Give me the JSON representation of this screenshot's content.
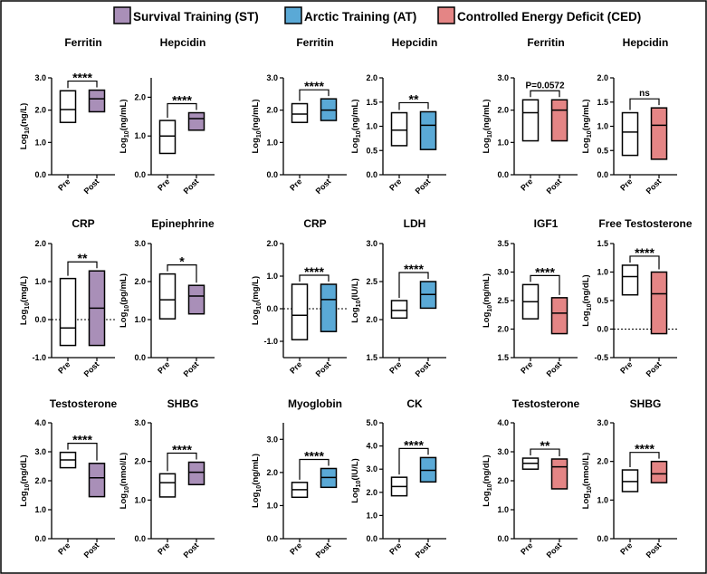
{
  "legend": [
    {
      "label": "Survival Training (ST)",
      "color": "#a98fb8"
    },
    {
      "label": "Arctic Training (AT)",
      "color": "#5aa9d6"
    },
    {
      "label": "Controlled Energy Deficit (CED)",
      "color": "#e48585"
    }
  ],
  "chart_data": [
    {
      "type": "box",
      "title": "Ferritin",
      "group": "ST",
      "ylabel_base": "Log",
      "ylabel_sub": "10",
      "ylabel_unit": "(ng/L)",
      "ylim": [
        0,
        3
      ],
      "yticks": [
        "0.0",
        "1.0",
        "2.0",
        "3.0"
      ],
      "categories": [
        "Pre",
        "Post"
      ],
      "boxes": [
        {
          "min": 1.62,
          "med": 2.02,
          "max": 2.6
        },
        {
          "min": 1.95,
          "med": 2.35,
          "max": 2.62
        }
      ],
      "significance": "****"
    },
    {
      "type": "box",
      "title": "Hepcidin",
      "group": "ST",
      "ylabel_base": "Log",
      "ylabel_sub": "10",
      "ylabel_unit": "(ng/mL)",
      "ylim": [
        0,
        2.5
      ],
      "yticks": [
        "0.0",
        "1.0",
        "2.0"
      ],
      "categories": [
        "Pre",
        "Post"
      ],
      "boxes": [
        {
          "min": 0.55,
          "med": 1.0,
          "max": 1.4
        },
        {
          "min": 1.15,
          "med": 1.45,
          "max": 1.6
        }
      ],
      "significance": "****"
    },
    {
      "type": "box",
      "title": "Ferritin",
      "group": "AT",
      "ylabel_base": "Log",
      "ylabel_sub": "10",
      "ylabel_unit": "(ng/mL)",
      "ylim": [
        0,
        3
      ],
      "yticks": [
        "0.0",
        "1.0",
        "2.0",
        "3.0"
      ],
      "categories": [
        "Pre",
        "Post"
      ],
      "boxes": [
        {
          "min": 1.62,
          "med": 1.88,
          "max": 2.2
        },
        {
          "min": 1.68,
          "med": 2.0,
          "max": 2.35
        }
      ],
      "significance": "****"
    },
    {
      "type": "box",
      "title": "Hepcidin",
      "group": "AT",
      "ylabel_base": "Log",
      "ylabel_sub": "10",
      "ylabel_unit": "(ng/mL)",
      "ylim": [
        0,
        2
      ],
      "yticks": [
        "0.0",
        "0.5",
        "1.0",
        "1.5",
        "2.0"
      ],
      "categories": [
        "Pre",
        "Post"
      ],
      "boxes": [
        {
          "min": 0.6,
          "med": 0.92,
          "max": 1.28
        },
        {
          "min": 0.52,
          "med": 1.02,
          "max": 1.3
        }
      ],
      "significance": "**"
    },
    {
      "type": "box",
      "title": "Ferritin",
      "group": "CED",
      "ylabel_base": "Log",
      "ylabel_sub": "10",
      "ylabel_unit": "(ng/mL)",
      "ylim": [
        0,
        3
      ],
      "yticks": [
        "0.0",
        "1.0",
        "2.0",
        "3.0"
      ],
      "categories": [
        "Pre",
        "Post"
      ],
      "boxes": [
        {
          "min": 1.05,
          "med": 1.92,
          "max": 2.32
        },
        {
          "min": 1.05,
          "med": 2.0,
          "max": 2.32
        }
      ],
      "significance": "P=0.0572"
    },
    {
      "type": "box",
      "title": "Hepcidin",
      "group": "CED",
      "ylabel_base": "Log",
      "ylabel_sub": "10",
      "ylabel_unit": "(ng/mL)",
      "ylim": [
        0,
        2
      ],
      "yticks": [
        "0.0",
        "0.5",
        "1.0",
        "1.5",
        "2.0"
      ],
      "categories": [
        "Pre",
        "Post"
      ],
      "boxes": [
        {
          "min": 0.4,
          "med": 0.88,
          "max": 1.28
        },
        {
          "min": 0.32,
          "med": 1.02,
          "max": 1.38
        }
      ],
      "significance": "ns"
    },
    {
      "type": "box",
      "title": "CRP",
      "group": "ST",
      "ylabel_base": "Log",
      "ylabel_sub": "10",
      "ylabel_unit": "(mg/L)",
      "ylim": [
        -1,
        2
      ],
      "yticks": [
        "-1.0",
        "0.0",
        "1.0",
        "2.0"
      ],
      "dashed_zero": true,
      "categories": [
        "Pre",
        "Post"
      ],
      "boxes": [
        {
          "min": -0.68,
          "med": -0.22,
          "max": 1.08
        },
        {
          "min": -0.68,
          "med": 0.3,
          "max": 1.28
        }
      ],
      "significance": "**"
    },
    {
      "type": "box",
      "title": "Epinephrine",
      "group": "ST",
      "ylabel_base": "Log",
      "ylabel_sub": "10",
      "ylabel_unit": "(pg/mL)",
      "ylim": [
        0,
        3
      ],
      "yticks": [
        "0.0",
        "1.0",
        "2.0",
        "3.0"
      ],
      "categories": [
        "Pre",
        "Post"
      ],
      "boxes": [
        {
          "min": 1.02,
          "med": 1.52,
          "max": 2.2
        },
        {
          "min": 1.15,
          "med": 1.62,
          "max": 1.9
        }
      ],
      "significance": "*"
    },
    {
      "type": "box",
      "title": "CRP",
      "group": "AT",
      "ylabel_base": "Log",
      "ylabel_sub": "10",
      "ylabel_unit": "(mg/L)",
      "ylim": [
        -1.5,
        2
      ],
      "yticks": [
        "-1.0",
        "0.0",
        "1.0",
        "2.0"
      ],
      "dashed_zero": true,
      "categories": [
        "Pre",
        "Post"
      ],
      "boxes": [
        {
          "min": -0.95,
          "med": -0.2,
          "max": 0.75
        },
        {
          "min": -0.7,
          "med": 0.28,
          "max": 0.75
        }
      ],
      "significance": "****"
    },
    {
      "type": "box",
      "title": "LDH",
      "group": "AT",
      "ylabel_base": "Log",
      "ylabel_sub": "10",
      "ylabel_unit": "(IU/L)",
      "ylim": [
        1.5,
        3
      ],
      "yticks": [
        "1.5",
        "2.0",
        "2.5",
        "3.0"
      ],
      "categories": [
        "Pre",
        "Post"
      ],
      "boxes": [
        {
          "min": 2.02,
          "med": 2.12,
          "max": 2.25
        },
        {
          "min": 2.15,
          "med": 2.33,
          "max": 2.5
        }
      ],
      "significance": "****"
    },
    {
      "type": "box",
      "title": "IGF1",
      "group": "CED",
      "ylabel_base": "Log",
      "ylabel_sub": "10",
      "ylabel_unit": "(ng/mL)",
      "ylim": [
        1.5,
        3.5
      ],
      "yticks": [
        "1.5",
        "2.0",
        "2.5",
        "3.0",
        "3.5"
      ],
      "categories": [
        "Pre",
        "Post"
      ],
      "boxes": [
        {
          "min": 2.18,
          "med": 2.48,
          "max": 2.78
        },
        {
          "min": 1.92,
          "med": 2.28,
          "max": 2.55
        }
      ],
      "significance": "****"
    },
    {
      "type": "box",
      "title": "Free Testosterone",
      "group": "CED",
      "ylabel_base": "Log",
      "ylabel_sub": "10",
      "ylabel_unit": "(ng/dL)",
      "ylim": [
        -0.5,
        1.5
      ],
      "yticks": [
        "-0.5",
        "0.0",
        "0.5",
        "1.0",
        "1.5"
      ],
      "dashed_zero": true,
      "categories": [
        "Pre",
        "Post"
      ],
      "boxes": [
        {
          "min": 0.6,
          "med": 0.92,
          "max": 1.12
        },
        {
          "min": -0.08,
          "med": 0.62,
          "max": 1.0
        }
      ],
      "significance": "****"
    },
    {
      "type": "box",
      "title": "Testosterone",
      "group": "ST",
      "ylabel_base": "Log",
      "ylabel_sub": "10",
      "ylabel_unit": "(ng/dL)",
      "ylim": [
        0,
        4
      ],
      "yticks": [
        "0.0",
        "1.0",
        "2.0",
        "3.0",
        "4.0"
      ],
      "categories": [
        "Pre",
        "Post"
      ],
      "boxes": [
        {
          "min": 2.45,
          "med": 2.72,
          "max": 2.98
        },
        {
          "min": 1.45,
          "med": 2.1,
          "max": 2.6
        }
      ],
      "significance": "****"
    },
    {
      "type": "box",
      "title": "SHBG",
      "group": "ST",
      "ylabel_base": "Log",
      "ylabel_sub": "10",
      "ylabel_unit": "(nmol/L)",
      "ylim": [
        0,
        3
      ],
      "yticks": [
        "0.0",
        "1.0",
        "2.0",
        "3.0"
      ],
      "categories": [
        "Pre",
        "Post"
      ],
      "boxes": [
        {
          "min": 1.08,
          "med": 1.45,
          "max": 1.68
        },
        {
          "min": 1.4,
          "med": 1.72,
          "max": 1.98
        }
      ],
      "significance": "****"
    },
    {
      "type": "box",
      "title": "Myoglobin",
      "group": "AT",
      "ylabel_base": "Log",
      "ylabel_sub": "10",
      "ylabel_unit": "(ng/mL)",
      "ylim": [
        0,
        3.5
      ],
      "yticks": [
        "0.0",
        "1.0",
        "2.0",
        "3.0"
      ],
      "categories": [
        "Pre",
        "Post"
      ],
      "boxes": [
        {
          "min": 1.25,
          "med": 1.48,
          "max": 1.7
        },
        {
          "min": 1.55,
          "med": 1.85,
          "max": 2.12
        }
      ],
      "significance": "****"
    },
    {
      "type": "box",
      "title": "CK",
      "group": "AT",
      "ylabel_base": "Log",
      "ylabel_sub": "10",
      "ylabel_unit": "(IU/L)",
      "ylim": [
        0,
        5
      ],
      "yticks": [
        "0.0",
        "1.0",
        "2.0",
        "3.0",
        "4.0",
        "5.0"
      ],
      "categories": [
        "Pre",
        "Post"
      ],
      "boxes": [
        {
          "min": 1.85,
          "med": 2.25,
          "max": 2.65
        },
        {
          "min": 2.45,
          "med": 2.95,
          "max": 3.5
        }
      ],
      "significance": "****"
    },
    {
      "type": "box",
      "title": "Testosterone",
      "group": "CED",
      "ylabel_base": "Log",
      "ylabel_sub": "10",
      "ylabel_unit": "(ng/dL)",
      "ylim": [
        0,
        4
      ],
      "yticks": [
        "0.0",
        "1.0",
        "2.0",
        "3.0",
        "4.0"
      ],
      "categories": [
        "Pre",
        "Post"
      ],
      "boxes": [
        {
          "min": 2.4,
          "med": 2.6,
          "max": 2.78
        },
        {
          "min": 1.72,
          "med": 2.48,
          "max": 2.75
        }
      ],
      "significance": "**"
    },
    {
      "type": "box",
      "title": "SHBG",
      "group": "CED",
      "ylabel_base": "Log",
      "ylabel_sub": "10",
      "ylabel_unit": "(nmol/L)",
      "ylim": [
        0,
        3
      ],
      "yticks": [
        "0.0",
        "1.0",
        "2.0",
        "3.0"
      ],
      "categories": [
        "Pre",
        "Post"
      ],
      "boxes": [
        {
          "min": 1.22,
          "med": 1.48,
          "max": 1.78
        },
        {
          "min": 1.45,
          "med": 1.68,
          "max": 2.0
        }
      ],
      "significance": "****"
    }
  ]
}
